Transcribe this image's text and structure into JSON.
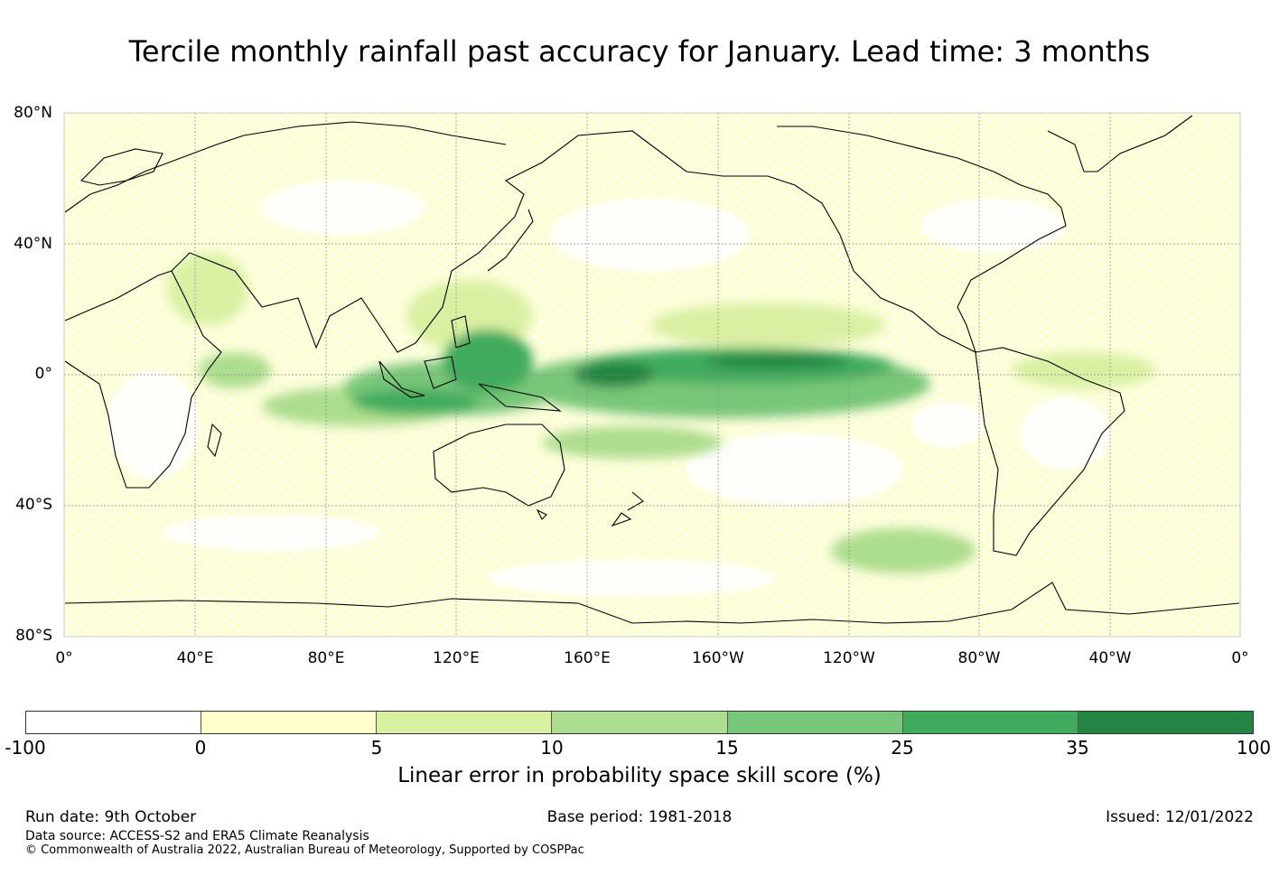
{
  "title": "Tercile monthly rainfall past accuracy for January. Lead time: 3 months",
  "map": {
    "lat_labels": [
      "80°N",
      "40°N",
      "0°",
      "40°S",
      "80°S"
    ],
    "lon_labels": [
      "0°",
      "40°E",
      "80°E",
      "120°E",
      "160°E",
      "160°W",
      "120°W",
      "80°W",
      "40°W",
      "0°"
    ],
    "features": [
      {
        "name": "equatorial-pacific-high-skill",
        "value_range": "25-35",
        "description_label": null
      },
      {
        "name": "maritime-continent-high-skill",
        "value_range": "15-35"
      }
    ]
  },
  "colorbar": {
    "ticks": [
      "-100",
      "0",
      "5",
      "10",
      "15",
      "25",
      "35",
      "100"
    ],
    "colors": [
      "#ffffff",
      "#ffffcc",
      "#d9f0a3",
      "#addd8e",
      "#78c679",
      "#41ab5d",
      "#238443"
    ],
    "label": "Linear error in probability space skill score (%)"
  },
  "footer": {
    "run_date": "Run date: 9th October",
    "base_period": "Base period: 1981-2018",
    "issued": "Issued: 12/01/2022",
    "data_source": "Data source: ACCESS-S2 and ERA5 Climate Reanalysis",
    "copyright": "© Commonwealth of Australia 2022, Australian Bureau of Meteorology, Supported by COSPPac"
  }
}
